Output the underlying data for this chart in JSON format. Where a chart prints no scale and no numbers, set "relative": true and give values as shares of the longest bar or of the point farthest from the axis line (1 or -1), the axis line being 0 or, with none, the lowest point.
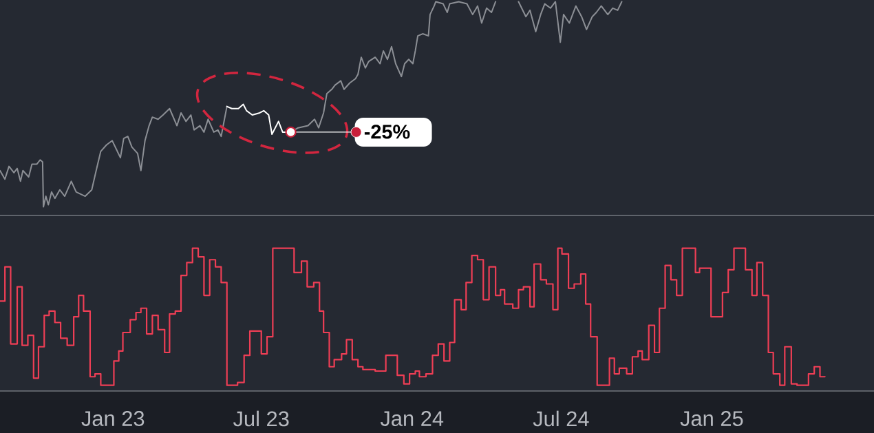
{
  "chart_data": [
    {
      "type": "line",
      "relative": true,
      "xlim": [
        "2022-08-16",
        "2025-07-18"
      ],
      "tick_labels": false,
      "series": [
        {
          "color": "#8c8f95",
          "x": [
            "2022-08-16",
            "2022-08-22",
            "2022-08-27",
            "2022-09-02",
            "2022-09-06",
            "2022-09-10",
            "2022-09-13",
            "2022-09-20",
            "2022-09-24",
            "2022-09-30",
            "2022-10-04",
            "2022-10-07",
            "2022-10-08",
            "2022-10-11",
            "2022-10-14",
            "2022-10-18",
            "2022-10-22",
            "2022-10-28",
            "2022-11-03",
            "2022-11-11",
            "2022-11-17",
            "2022-11-28",
            "2022-12-06",
            "2022-12-12",
            "2022-12-17",
            "2022-12-24",
            "2022-12-31",
            "2023-01-05",
            "2023-01-10",
            "2023-01-14",
            "2023-01-19",
            "2023-01-24",
            "2023-01-31",
            "2023-02-04",
            "2023-02-09",
            "2023-02-14",
            "2023-02-18",
            "2023-02-25",
            "2023-03-03",
            "2023-03-11",
            "2023-03-20",
            "2023-03-25",
            "2023-03-31",
            "2023-04-06",
            "2023-04-10",
            "2023-04-17",
            "2023-04-22",
            "2023-04-27",
            "2023-05-04",
            "2023-05-09",
            "2023-05-13",
            "2023-05-16",
            "2023-05-20"
          ],
          "values": [
            0.21,
            0.17,
            0.23,
            0.2,
            0.22,
            0.16,
            0.21,
            0.18,
            0.24,
            0.24,
            0.26,
            0.25,
            0.04,
            0.09,
            0.05,
            0.11,
            0.08,
            0.12,
            0.09,
            0.16,
            0.11,
            0.09,
            0.12,
            0.22,
            0.3,
            0.33,
            0.35,
            0.31,
            0.27,
            0.36,
            0.37,
            0.32,
            0.29,
            0.21,
            0.35,
            0.42,
            0.46,
            0.45,
            0.47,
            0.5,
            0.42,
            0.48,
            0.44,
            0.47,
            0.4,
            0.42,
            0.39,
            0.45,
            0.39,
            0.4,
            0.37,
            0.43,
            0.51
          ]
        },
        {
          "color": "#ffffff",
          "x": [
            "2023-05-20",
            "2023-05-26",
            "2023-06-03",
            "2023-06-09",
            "2023-06-13",
            "2023-06-20",
            "2023-06-29",
            "2023-07-04",
            "2023-07-10",
            "2023-07-14",
            "2023-07-18",
            "2023-07-22",
            "2023-07-27",
            "2023-08-03",
            "2023-08-06"
          ],
          "values": [
            0.51,
            0.5,
            0.5,
            0.52,
            0.49,
            0.47,
            0.48,
            0.49,
            0.47,
            0.38,
            0.41,
            0.44,
            0.39,
            0.39,
            0.39
          ]
        },
        {
          "color": "#8c8f95",
          "x": [
            "2023-08-06",
            "2023-08-15",
            "2023-08-27",
            "2023-09-04",
            "2023-09-09",
            "2023-09-15",
            "2023-09-19",
            "2023-09-25",
            "2023-09-29",
            "2023-10-06",
            "2023-10-10",
            "2023-10-17",
            "2023-10-24",
            "2023-10-27",
            "2023-10-31",
            "2023-11-05",
            "2023-11-09",
            "2023-11-17",
            "2023-11-23",
            "2023-11-27",
            "2023-12-02",
            "2023-12-07",
            "2023-12-12",
            "2023-12-19",
            "2023-12-23",
            "2023-12-28",
            "2024-01-02",
            "2024-01-05",
            "2024-01-08",
            "2024-01-14",
            "2024-01-21",
            "2024-01-23",
            "2024-01-28",
            "2024-01-30",
            "2024-02-08",
            "2024-02-13",
            "2024-02-16",
            "2024-02-27",
            "2024-03-08",
            "2024-03-15",
            "2024-03-21",
            "2024-03-26",
            "2024-04-01",
            "2024-04-07",
            "2024-04-12",
            "2024-04-26",
            "2024-05-10",
            "2024-05-19",
            "2024-05-24",
            "2024-05-31",
            "2024-06-06",
            "2024-06-11",
            "2024-06-18",
            "2024-06-24",
            "2024-06-30",
            "2024-07-04",
            "2024-07-11",
            "2024-07-19",
            "2024-07-26",
            "2024-08-01",
            "2024-08-08",
            "2024-08-13",
            "2024-08-19",
            "2024-08-27",
            "2024-09-02",
            "2024-09-08",
            "2024-09-13"
          ],
          "values": [
            0.39,
            0.41,
            0.42,
            0.45,
            0.41,
            0.48,
            0.57,
            0.59,
            0.61,
            0.63,
            0.59,
            0.62,
            0.64,
            0.66,
            0.74,
            0.69,
            0.72,
            0.74,
            0.71,
            0.77,
            0.73,
            0.79,
            0.71,
            0.65,
            0.71,
            0.73,
            0.71,
            0.77,
            0.84,
            0.85,
            0.84,
            0.94,
            0.98,
            1.0,
            0.99,
            0.95,
            0.99,
            1.0,
            0.99,
            0.94,
            0.98,
            0.9,
            0.97,
            0.95,
            1.0,
            null,
            1.0,
            0.93,
            0.96,
            0.86,
            0.94,
            0.99,
            0.97,
            1.0,
            0.81,
            0.94,
            0.9,
            0.98,
            0.93,
            0.87,
            0.93,
            0.95,
            0.98,
            0.94,
            0.97,
            0.96,
            1.0
          ]
        }
      ],
      "annotations": [
        "-25%"
      ]
    },
    {
      "type": "step",
      "relative": true,
      "xlim": [
        "2022-08-16",
        "2025-07-18"
      ],
      "tick_labels": "x",
      "xticks": [
        {
          "value": "2023-01-01",
          "label": "Jan 23"
        },
        {
          "value": "2023-07-01",
          "label": "Jul 23"
        },
        {
          "value": "2024-01-01",
          "label": "Jan 24"
        },
        {
          "value": "2024-07-01",
          "label": "Jul 24"
        },
        {
          "value": "2025-01-01",
          "label": "Jan 25"
        }
      ],
      "series": [
        {
          "color": "#ee3e55",
          "x": [
            "2022-08-16",
            "2022-08-22",
            "2022-08-29",
            "2022-09-06",
            "2022-09-12",
            "2022-09-19",
            "2022-09-26",
            "2022-10-02",
            "2022-10-09",
            "2022-10-15",
            "2022-10-22",
            "2022-10-29",
            "2022-11-06",
            "2022-11-14",
            "2022-11-20",
            "2022-11-26",
            "2022-12-04",
            "2022-12-10",
            "2022-12-17",
            "2023-01-02",
            "2023-01-08",
            "2023-01-13",
            "2023-01-22",
            "2023-01-29",
            "2023-02-04",
            "2023-02-11",
            "2023-02-18",
            "2023-02-25",
            "2023-03-05",
            "2023-03-11",
            "2023-03-18",
            "2023-03-25",
            "2023-04-01",
            "2023-04-08",
            "2023-04-15",
            "2023-04-22",
            "2023-04-29",
            "2023-05-06",
            "2023-05-13",
            "2023-05-20",
            "2023-06-02",
            "2023-06-10",
            "2023-06-17",
            "2023-07-01",
            "2023-07-08",
            "2023-07-15",
            "2023-08-10",
            "2023-08-19",
            "2023-08-26",
            "2023-09-03",
            "2023-09-10",
            "2023-09-15",
            "2023-09-22",
            "2023-09-28",
            "2023-10-07",
            "2023-10-13",
            "2023-10-20",
            "2023-10-27",
            "2023-11-02",
            "2023-11-17",
            "2023-11-30",
            "2023-12-14",
            "2023-12-22",
            "2023-12-29",
            "2024-01-05",
            "2024-01-10",
            "2024-01-18",
            "2024-01-26",
            "2024-02-02",
            "2024-02-09",
            "2024-02-16",
            "2024-02-22",
            "2024-03-01",
            "2024-03-07",
            "2024-03-14",
            "2024-03-21",
            "2024-03-28",
            "2024-04-04",
            "2024-04-12",
            "2024-04-18",
            "2024-04-23",
            "2024-05-03",
            "2024-05-10",
            "2024-05-16",
            "2024-05-24",
            "2024-05-29",
            "2024-06-06",
            "2024-06-13",
            "2024-06-21",
            "2024-06-27",
            "2024-07-02",
            "2024-07-10",
            "2024-07-17",
            "2024-07-25",
            "2024-07-31",
            "2024-08-06",
            "2024-08-14",
            "2024-08-29",
            "2024-09-04",
            "2024-09-10",
            "2024-09-19",
            "2024-09-26",
            "2024-10-03",
            "2024-10-08",
            "2024-10-16",
            "2024-10-23",
            "2024-10-29",
            "2024-11-05",
            "2024-11-12",
            "2024-11-19",
            "2024-11-26",
            "2024-12-12",
            "2024-12-17",
            "2024-12-31",
            "2025-01-14",
            "2025-01-21",
            "2025-01-28",
            "2025-02-11",
            "2025-02-19",
            "2025-02-25",
            "2025-03-04",
            "2025-03-11",
            "2025-03-17",
            "2025-03-25",
            "2025-03-31",
            "2025-04-08",
            "2025-04-15",
            "2025-04-29",
            "2025-05-06",
            "2025-05-13",
            "2025-05-19"
          ],
          "values": [
            0.63,
            0.87,
            0.33,
            0.73,
            0.32,
            0.39,
            0.09,
            0.31,
            0.53,
            0.56,
            0.48,
            0.37,
            0.32,
            0.52,
            0.67,
            0.56,
            0.1,
            0.12,
            0.04,
            0.21,
            0.28,
            0.41,
            0.5,
            0.55,
            0.58,
            0.4,
            0.53,
            0.43,
            0.27,
            0.54,
            0.56,
            0.81,
            0.9,
            1.0,
            0.94,
            0.67,
            0.92,
            0.87,
            0.76,
            0.04,
            0.06,
            0.25,
            0.42,
            0.26,
            0.38,
            1.0,
            0.83,
            0.91,
            0.73,
            0.76,
            0.56,
            0.41,
            0.17,
            0.22,
            0.26,
            0.36,
            0.22,
            0.17,
            0.15,
            0.14,
            0.25,
            0.11,
            0.05,
            0.12,
            0.14,
            0.1,
            0.12,
            0.25,
            0.33,
            0.21,
            0.34,
            0.64,
            0.57,
            0.76,
            0.95,
            0.92,
            0.64,
            0.87,
            0.67,
            0.71,
            0.61,
            0.58,
            0.71,
            0.73,
            0.59,
            0.89,
            0.78,
            0.75,
            0.57,
            1.0,
            0.96,
            0.72,
            0.75,
            0.82,
            0.61,
            0.38,
            0.04,
            0.23,
            0.12,
            0.16,
            0.12,
            0.24,
            0.28,
            0.22,
            0.46,
            0.27,
            0.58,
            0.88,
            0.78,
            0.67,
            1.0,
            0.83,
            0.86,
            0.52,
            0.69,
            0.85,
            1.0,
            0.85,
            0.67,
            0.9,
            0.67,
            0.27,
            0.12,
            0.04,
            0.31,
            0.05,
            0.04,
            0.12,
            0.17,
            0.1,
            0.1
          ]
        }
      ]
    }
  ]
}
